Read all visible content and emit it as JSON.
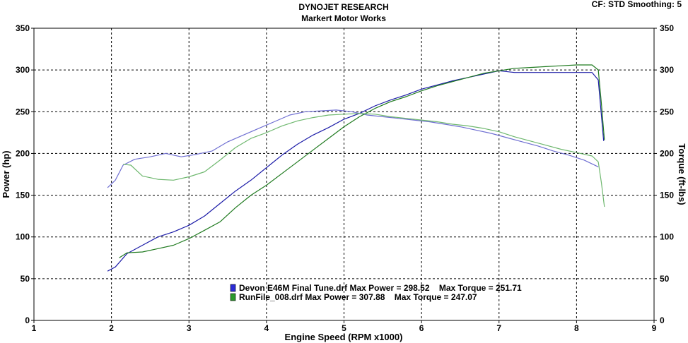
{
  "header": {
    "title": "DYNOJET RESEARCH",
    "subtitle": "Markert Motor Works",
    "info": "CF: STD  Smoothing: 5"
  },
  "colors": {
    "blue": "#1c1ca8",
    "blue_light": "#6f6fd2",
    "green": "#1f7a1f",
    "green_light": "#6fb86f",
    "grid": "#000000"
  },
  "chart_data": {
    "type": "line",
    "title": "DYNOJET RESEARCH",
    "subtitle": "Markert Motor Works",
    "xlabel": "Engine Speed (RPM x1000)",
    "ylabel": "Power (hp)",
    "y2label": "Torque (ft-lbs)",
    "xlim": [
      1,
      9
    ],
    "ylim": [
      0,
      350
    ],
    "y2lim": [
      0,
      350
    ],
    "xticks": [
      "1",
      "2",
      "3",
      "4",
      "5",
      "6",
      "7",
      "8",
      "9"
    ],
    "yticks": [
      "0",
      "50",
      "100",
      "150",
      "200",
      "250",
      "300",
      "350"
    ],
    "grid": true,
    "legend": [
      "Devon E46M Final Tune.drf Max Power = 298.52    Max Torque = 251.71",
      "RunFile_008.drf Max Power = 307.88    Max Torque = 247.07"
    ],
    "series": [
      {
        "name": "Devon E46M Final Tune.drf",
        "kind": "power",
        "color": "blue",
        "x": [
          1.95,
          2.05,
          2.2,
          2.4,
          2.6,
          2.8,
          3.0,
          3.2,
          3.4,
          3.6,
          3.8,
          4.0,
          4.2,
          4.4,
          4.6,
          4.8,
          5.0,
          5.2,
          5.4,
          5.6,
          5.8,
          6.0,
          6.2,
          6.4,
          6.6,
          6.8,
          7.0,
          7.2,
          7.4,
          7.6,
          7.8,
          8.0,
          8.2,
          8.28,
          8.35
        ],
        "y": [
          59,
          64,
          80,
          90,
          100,
          106,
          114,
          125,
          140,
          155,
          168,
          183,
          198,
          211,
          222,
          231,
          241,
          248,
          257,
          264,
          270,
          277,
          282,
          287,
          291,
          295,
          299,
          297,
          297,
          297,
          297,
          297,
          297,
          288,
          215
        ]
      },
      {
        "name": "Devon E46M Final Tune.drf",
        "kind": "torque",
        "color": "blue_light",
        "x": [
          1.95,
          2.05,
          2.15,
          2.3,
          2.5,
          2.7,
          2.9,
          3.1,
          3.3,
          3.5,
          3.7,
          3.9,
          4.1,
          4.3,
          4.5,
          4.7,
          4.9,
          5.1,
          5.3,
          5.5,
          5.7,
          5.9,
          6.1,
          6.3,
          6.5,
          6.7,
          6.9,
          7.1,
          7.3,
          7.5,
          7.7,
          7.9,
          8.1,
          8.28
        ],
        "y": [
          159,
          168,
          186,
          193,
          196,
          200,
          196,
          199,
          203,
          214,
          222,
          230,
          238,
          246,
          250,
          251,
          252,
          250,
          246,
          244,
          242,
          240,
          238,
          235,
          232,
          228,
          224,
          219,
          214,
          209,
          203,
          198,
          192,
          184
        ]
      },
      {
        "name": "RunFile_008.drf",
        "kind": "power",
        "color": "green",
        "x": [
          2.1,
          2.2,
          2.4,
          2.6,
          2.8,
          3.0,
          3.2,
          3.4,
          3.6,
          3.8,
          4.0,
          4.2,
          4.4,
          4.6,
          4.8,
          5.0,
          5.2,
          5.4,
          5.6,
          5.8,
          6.0,
          6.2,
          6.4,
          6.6,
          6.8,
          7.0,
          7.2,
          7.4,
          7.6,
          7.8,
          8.0,
          8.2,
          8.28,
          8.32,
          8.36
        ],
        "y": [
          75,
          81,
          82,
          86,
          90,
          98,
          108,
          118,
          135,
          150,
          162,
          176,
          190,
          204,
          218,
          232,
          244,
          254,
          262,
          268,
          275,
          281,
          286,
          291,
          296,
          299,
          302,
          303,
          304,
          305,
          306,
          306,
          300,
          260,
          216
        ]
      },
      {
        "name": "RunFile_008.drf",
        "kind": "torque",
        "color": "green_light",
        "x": [
          2.15,
          2.25,
          2.4,
          2.6,
          2.8,
          3.0,
          3.2,
          3.4,
          3.6,
          3.8,
          4.0,
          4.2,
          4.4,
          4.6,
          4.8,
          5.0,
          5.2,
          5.4,
          5.6,
          5.8,
          6.0,
          6.2,
          6.4,
          6.6,
          6.8,
          7.0,
          7.2,
          7.4,
          7.6,
          7.8,
          8.0,
          8.2,
          8.28,
          8.32,
          8.36
        ],
        "y": [
          187,
          186,
          173,
          169,
          168,
          172,
          178,
          192,
          207,
          218,
          225,
          233,
          239,
          243,
          246,
          247,
          248,
          247,
          244,
          242,
          240,
          238,
          235,
          233,
          230,
          226,
          220,
          215,
          210,
          205,
          201,
          197,
          190,
          165,
          136
        ]
      }
    ]
  }
}
